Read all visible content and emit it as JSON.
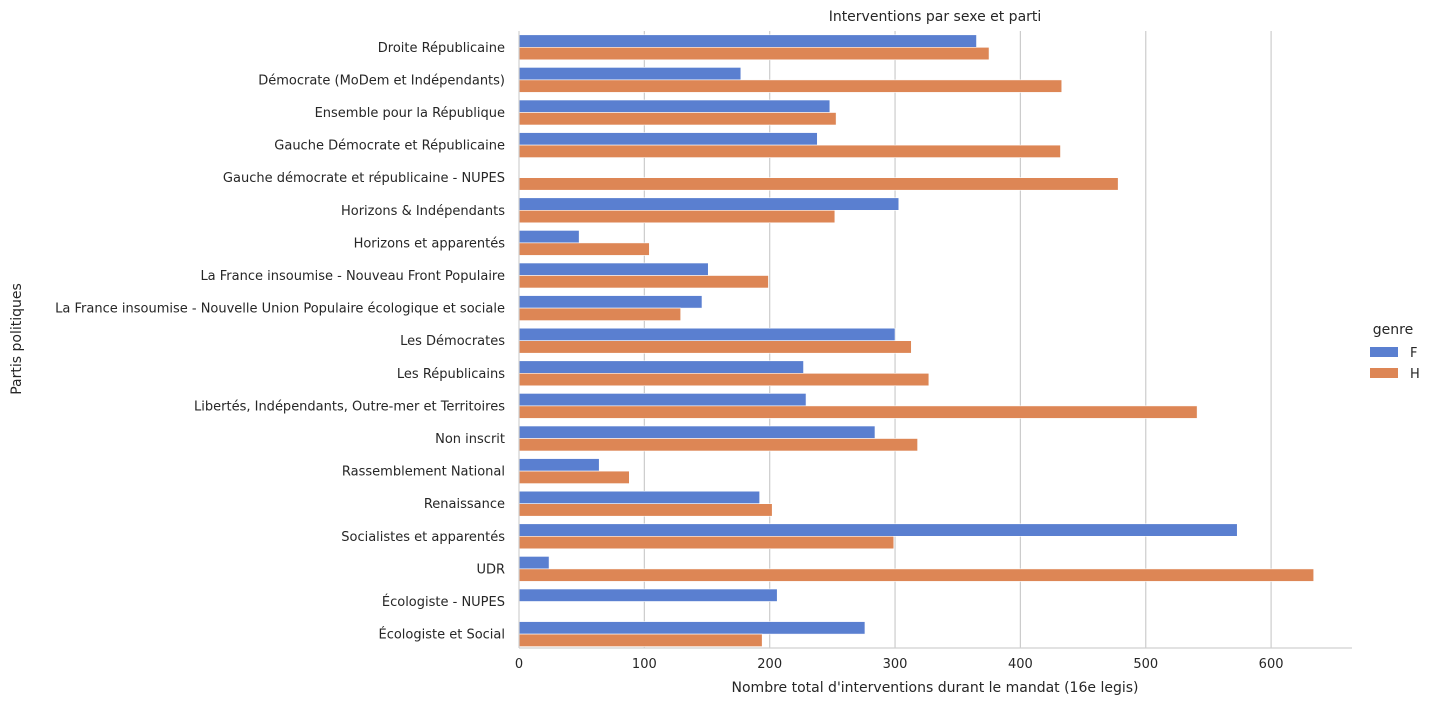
{
  "chart_data": {
    "type": "bar",
    "orientation": "horizontal",
    "title": "Interventions par sexe et parti",
    "xlabel": "Nombre total d'interventions durant le mandat (16e legis)",
    "ylabel": "Partis politiques",
    "xlim": [
      0,
      665
    ],
    "x_ticks": [
      0,
      100,
      200,
      300,
      400,
      500,
      600
    ],
    "grid": "vertical",
    "legend": {
      "title": "genre",
      "position": "right"
    },
    "categories": [
      "Droite Républicaine",
      "Démocrate (MoDem et Indépendants)",
      "Ensemble pour la République",
      "Gauche Démocrate et Républicaine",
      "Gauche démocrate et républicaine - NUPES",
      "Horizons & Indépendants",
      "Horizons et apparentés",
      "La France insoumise - Nouveau Front Populaire",
      "La France insoumise - Nouvelle Union Populaire écologique et sociale",
      "Les Démocrates",
      "Les Républicains",
      "Libertés, Indépendants, Outre-mer et Territoires",
      "Non inscrit",
      "Rassemblement National",
      "Renaissance",
      "Socialistes et apparentés",
      "UDR",
      "Écologiste - NUPES",
      "Écologiste et Social"
    ],
    "series": [
      {
        "name": "F",
        "color": "#5a7fd0",
        "values": [
          365,
          177,
          248,
          238,
          null,
          303,
          48,
          151,
          146,
          300,
          227,
          229,
          284,
          64,
          192,
          573,
          24,
          206,
          276
        ]
      },
      {
        "name": "H",
        "color": "#dd8655",
        "values": [
          375,
          433,
          253,
          432,
          478,
          252,
          104,
          199,
          129,
          313,
          327,
          541,
          318,
          88,
          202,
          299,
          634,
          null,
          194
        ]
      }
    ]
  }
}
